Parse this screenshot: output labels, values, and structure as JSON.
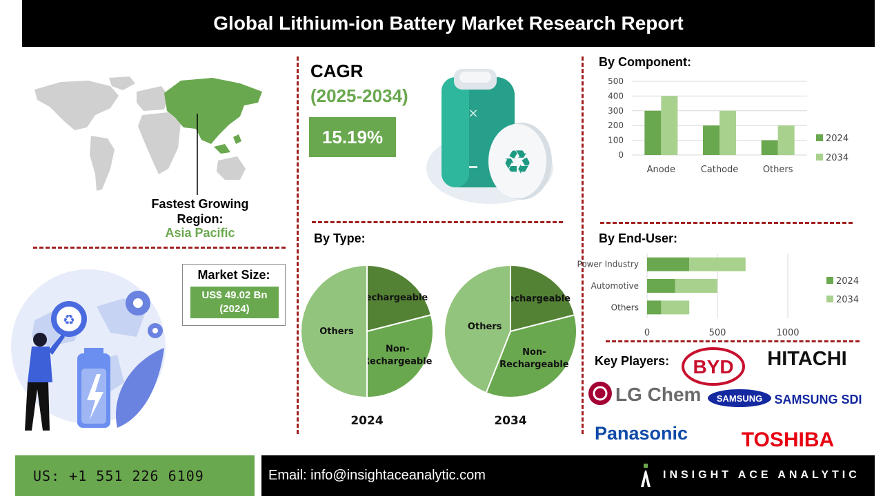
{
  "header": {
    "title": "Global Lithium-ion Battery Market Research Report"
  },
  "region": {
    "label": "Fastest Growing Region:",
    "value": "Asia Pacific"
  },
  "market_size": {
    "label": "Market Size:",
    "value": "US$ 49.02 Bn",
    "year": "(2024)"
  },
  "cagr": {
    "title": "CAGR",
    "years": "(2025-2034)",
    "value": "15.19%"
  },
  "sections": {
    "component": "By Component:",
    "type": "By Type:",
    "end_user": "By End-User:",
    "key_players": "Key Players:"
  },
  "key_players": [
    "BYD",
    "HITACHI",
    "LG Chem",
    "SAMSUNG",
    "SAMSUNG SDI",
    "Panasonic",
    "TOSHIBA"
  ],
  "colors": {
    "green_dark": "#6aa84f",
    "green_light": "#a9d18e",
    "pie_dark": "#548235",
    "pie_mid": "#6aa84f",
    "pie_light": "#93c47d",
    "accent_red": "#a11f1f",
    "samsung_blue": "#1428a0",
    "panasonic_blue": "#0f4aa8",
    "toshiba_red": "#e60012",
    "byd_red": "#c8102e",
    "lg_red": "#a50034"
  },
  "footer": {
    "phone": "US: +1 551 226 6109",
    "email": "Email: info@insightaceanalytic.com",
    "brand": "INSIGHT ACE ANALYTIC"
  },
  "chart_data": [
    {
      "type": "bar",
      "title": "By Component:",
      "categories": [
        "Anode",
        "Cathode",
        "Others"
      ],
      "series": [
        {
          "name": "2024",
          "values": [
            300,
            200,
            100
          ]
        },
        {
          "name": "2034",
          "values": [
            400,
            300,
            200
          ]
        }
      ],
      "ylim": [
        0,
        500
      ],
      "yticks": [
        0,
        100,
        200,
        300,
        400,
        500
      ],
      "grid": true,
      "legend": "right"
    },
    {
      "type": "bar",
      "orientation": "horizontal",
      "stacked": true,
      "title": "By End-User:",
      "categories": [
        "Power Industry",
        "Automotive",
        "Others"
      ],
      "series": [
        {
          "name": "2024",
          "values": [
            300,
            200,
            100
          ]
        },
        {
          "name": "2034",
          "values": [
            400,
            300,
            200
          ]
        }
      ],
      "xlim": [
        0,
        1000
      ],
      "xticks": [
        0,
        500,
        1000
      ],
      "grid": true,
      "legend": "right"
    },
    {
      "type": "pie",
      "title": "2024",
      "labels": [
        "Rechargeable",
        "Non-Rechargeable",
        "Others"
      ],
      "values": [
        21,
        29,
        50
      ]
    },
    {
      "type": "pie",
      "title": "2034",
      "labels": [
        "Rechargeable",
        "Non-Rechargeable",
        "Others"
      ],
      "values": [
        21,
        35,
        44
      ]
    }
  ]
}
